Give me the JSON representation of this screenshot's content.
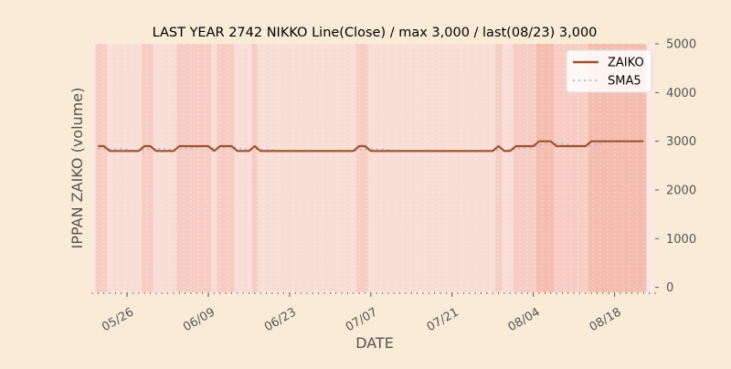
{
  "chart_data": {
    "type": "line",
    "title": "LAST YEAR 2742 NIKKO Line(Close) / max 3,000 / last(08/23) 3,000",
    "xlabel": "DATE",
    "ylabel": "IPPAN ZAIKO (volume)",
    "y_axis_side": "right",
    "ylim": [
      -100,
      5000
    ],
    "yticks": [
      "0",
      "1000",
      "2000",
      "3000",
      "4000",
      "5000"
    ],
    "xlim": [
      "2023-05-20",
      "2023-08-25"
    ],
    "xticks": [
      {
        "date": "2023-05-26",
        "label": "05/26"
      },
      {
        "date": "2023-06-09",
        "label": "06/09"
      },
      {
        "date": "2023-06-23",
        "label": "06/23"
      },
      {
        "date": "2023-07-07",
        "label": "07/07"
      },
      {
        "date": "2023-07-21",
        "label": "07/21"
      },
      {
        "date": "2023-08-04",
        "label": "08/04"
      },
      {
        "date": "2023-08-18",
        "label": "08/18"
      }
    ],
    "legend_position": "top-right",
    "grid": true,
    "series": [
      {
        "name": "ZAIKO",
        "color": "#a0522d",
        "style": "solid",
        "points": [
          [
            "2023-05-21",
            2900
          ],
          [
            "2023-05-22",
            2900
          ],
          [
            "2023-05-23",
            2800
          ],
          [
            "2023-05-24",
            2800
          ],
          [
            "2023-05-25",
            2800
          ],
          [
            "2023-05-26",
            2800
          ],
          [
            "2023-05-27",
            2800
          ],
          [
            "2023-05-28",
            2800
          ],
          [
            "2023-05-29",
            2900
          ],
          [
            "2023-05-30",
            2900
          ],
          [
            "2023-05-31",
            2800
          ],
          [
            "2023-06-01",
            2800
          ],
          [
            "2023-06-02",
            2800
          ],
          [
            "2023-06-03",
            2800
          ],
          [
            "2023-06-04",
            2900
          ],
          [
            "2023-06-05",
            2900
          ],
          [
            "2023-06-06",
            2900
          ],
          [
            "2023-06-07",
            2900
          ],
          [
            "2023-06-08",
            2900
          ],
          [
            "2023-06-09",
            2900
          ],
          [
            "2023-06-10",
            2800
          ],
          [
            "2023-06-11",
            2900
          ],
          [
            "2023-06-12",
            2900
          ],
          [
            "2023-06-13",
            2900
          ],
          [
            "2023-06-14",
            2800
          ],
          [
            "2023-06-15",
            2800
          ],
          [
            "2023-06-16",
            2800
          ],
          [
            "2023-06-17",
            2900
          ],
          [
            "2023-06-18",
            2800
          ],
          [
            "2023-06-19",
            2800
          ],
          [
            "2023-06-20",
            2800
          ],
          [
            "2023-06-21",
            2800
          ],
          [
            "2023-06-22",
            2800
          ],
          [
            "2023-06-23",
            2800
          ],
          [
            "2023-06-24",
            2800
          ],
          [
            "2023-06-25",
            2800
          ],
          [
            "2023-06-26",
            2800
          ],
          [
            "2023-06-27",
            2800
          ],
          [
            "2023-06-28",
            2800
          ],
          [
            "2023-06-29",
            2800
          ],
          [
            "2023-06-30",
            2800
          ],
          [
            "2023-07-01",
            2800
          ],
          [
            "2023-07-02",
            2800
          ],
          [
            "2023-07-03",
            2800
          ],
          [
            "2023-07-04",
            2800
          ],
          [
            "2023-07-05",
            2900
          ],
          [
            "2023-07-06",
            2900
          ],
          [
            "2023-07-07",
            2800
          ],
          [
            "2023-07-08",
            2800
          ],
          [
            "2023-07-09",
            2800
          ],
          [
            "2023-07-10",
            2800
          ],
          [
            "2023-07-11",
            2800
          ],
          [
            "2023-07-12",
            2800
          ],
          [
            "2023-07-13",
            2800
          ],
          [
            "2023-07-14",
            2800
          ],
          [
            "2023-07-15",
            2800
          ],
          [
            "2023-07-16",
            2800
          ],
          [
            "2023-07-17",
            2800
          ],
          [
            "2023-07-18",
            2800
          ],
          [
            "2023-07-19",
            2800
          ],
          [
            "2023-07-20",
            2800
          ],
          [
            "2023-07-21",
            2800
          ],
          [
            "2023-07-22",
            2800
          ],
          [
            "2023-07-23",
            2800
          ],
          [
            "2023-07-24",
            2800
          ],
          [
            "2023-07-25",
            2800
          ],
          [
            "2023-07-26",
            2800
          ],
          [
            "2023-07-27",
            2800
          ],
          [
            "2023-07-28",
            2800
          ],
          [
            "2023-07-29",
            2900
          ],
          [
            "2023-07-30",
            2800
          ],
          [
            "2023-07-31",
            2800
          ],
          [
            "2023-08-01",
            2900
          ],
          [
            "2023-08-02",
            2900
          ],
          [
            "2023-08-03",
            2900
          ],
          [
            "2023-08-04",
            2900
          ],
          [
            "2023-08-05",
            3000
          ],
          [
            "2023-08-06",
            3000
          ],
          [
            "2023-08-07",
            3000
          ],
          [
            "2023-08-08",
            2900
          ],
          [
            "2023-08-09",
            2900
          ],
          [
            "2023-08-10",
            2900
          ],
          [
            "2023-08-11",
            2900
          ],
          [
            "2023-08-12",
            2900
          ],
          [
            "2023-08-13",
            2900
          ],
          [
            "2023-08-14",
            3000
          ],
          [
            "2023-08-15",
            3000
          ],
          [
            "2023-08-16",
            3000
          ],
          [
            "2023-08-17",
            3000
          ],
          [
            "2023-08-18",
            3000
          ],
          [
            "2023-08-19",
            3000
          ],
          [
            "2023-08-20",
            3000
          ],
          [
            "2023-08-21",
            3000
          ],
          [
            "2023-08-22",
            3000
          ],
          [
            "2023-08-23",
            3000
          ]
        ]
      },
      {
        "name": "SMA5",
        "color": "#a8bfd6",
        "style": "dotted",
        "points": [
          [
            "2023-05-21",
            2850
          ],
          [
            "2023-05-22",
            2850
          ],
          [
            "2023-05-23",
            2840
          ],
          [
            "2023-05-24",
            2840
          ],
          [
            "2023-05-25",
            2850
          ],
          [
            "2023-05-26",
            2830
          ],
          [
            "2023-05-27",
            2810
          ],
          [
            "2023-05-28",
            2800
          ],
          [
            "2023-05-29",
            2820
          ],
          [
            "2023-05-30",
            2840
          ],
          [
            "2023-05-31",
            2850
          ],
          [
            "2023-06-01",
            2840
          ],
          [
            "2023-06-02",
            2840
          ],
          [
            "2023-06-03",
            2820
          ],
          [
            "2023-06-04",
            2820
          ],
          [
            "2023-06-05",
            2850
          ],
          [
            "2023-06-06",
            2860
          ],
          [
            "2023-06-07",
            2880
          ],
          [
            "2023-06-08",
            2900
          ],
          [
            "2023-06-09",
            2880
          ],
          [
            "2023-06-10",
            2860
          ],
          [
            "2023-06-11",
            2880
          ],
          [
            "2023-06-12",
            2880
          ],
          [
            "2023-06-13",
            2880
          ],
          [
            "2023-06-14",
            2860
          ],
          [
            "2023-06-15",
            2840
          ],
          [
            "2023-06-16",
            2840
          ],
          [
            "2023-06-17",
            2840
          ],
          [
            "2023-06-18",
            2830
          ],
          [
            "2023-06-19",
            2820
          ],
          [
            "2023-06-20",
            2820
          ],
          [
            "2023-06-21",
            2800
          ],
          [
            "2023-06-22",
            2800
          ],
          [
            "2023-06-23",
            2800
          ],
          [
            "2023-06-24",
            2800
          ],
          [
            "2023-06-25",
            2800
          ],
          [
            "2023-06-26",
            2800
          ],
          [
            "2023-06-27",
            2800
          ],
          [
            "2023-06-28",
            2800
          ],
          [
            "2023-06-29",
            2800
          ],
          [
            "2023-06-30",
            2800
          ],
          [
            "2023-07-01",
            2800
          ],
          [
            "2023-07-02",
            2800
          ],
          [
            "2023-07-03",
            2800
          ],
          [
            "2023-07-04",
            2800
          ],
          [
            "2023-07-05",
            2820
          ],
          [
            "2023-07-06",
            2840
          ],
          [
            "2023-07-07",
            2840
          ],
          [
            "2023-07-08",
            2840
          ],
          [
            "2023-07-09",
            2840
          ],
          [
            "2023-07-10",
            2820
          ],
          [
            "2023-07-11",
            2800
          ],
          [
            "2023-07-12",
            2800
          ],
          [
            "2023-07-13",
            2800
          ],
          [
            "2023-07-14",
            2800
          ],
          [
            "2023-07-15",
            2800
          ],
          [
            "2023-07-16",
            2800
          ],
          [
            "2023-07-17",
            2800
          ],
          [
            "2023-07-18",
            2800
          ],
          [
            "2023-07-19",
            2800
          ],
          [
            "2023-07-20",
            2800
          ],
          [
            "2023-07-21",
            2800
          ],
          [
            "2023-07-22",
            2800
          ],
          [
            "2023-07-23",
            2800
          ],
          [
            "2023-07-24",
            2800
          ],
          [
            "2023-07-25",
            2800
          ],
          [
            "2023-07-26",
            2800
          ],
          [
            "2023-07-27",
            2800
          ],
          [
            "2023-07-28",
            2800
          ],
          [
            "2023-07-29",
            2820
          ],
          [
            "2023-07-30",
            2820
          ],
          [
            "2023-07-31",
            2820
          ],
          [
            "2023-08-01",
            2840
          ],
          [
            "2023-08-02",
            2860
          ],
          [
            "2023-08-03",
            2860
          ],
          [
            "2023-08-04",
            2880
          ],
          [
            "2023-08-05",
            2920
          ],
          [
            "2023-08-06",
            2940
          ],
          [
            "2023-08-07",
            2960
          ],
          [
            "2023-08-08",
            2960
          ],
          [
            "2023-08-09",
            2960
          ],
          [
            "2023-08-10",
            2940
          ],
          [
            "2023-08-11",
            2920
          ],
          [
            "2023-08-12",
            2900
          ],
          [
            "2023-08-13",
            2900
          ],
          [
            "2023-08-14",
            2920
          ],
          [
            "2023-08-15",
            2940
          ],
          [
            "2023-08-16",
            2960
          ],
          [
            "2023-08-17",
            2980
          ],
          [
            "2023-08-18",
            3000
          ],
          [
            "2023-08-19",
            3000
          ],
          [
            "2023-08-20",
            3000
          ],
          [
            "2023-08-21",
            3000
          ],
          [
            "2023-08-22",
            3000
          ],
          [
            "2023-08-23",
            3000
          ]
        ]
      }
    ]
  },
  "colors": {
    "page_background": "#faebd7",
    "plot_background": "#fbe8e2",
    "highlight_band": "#f2a99b",
    "grid": "#ffffff",
    "text": "#555555",
    "title": "#000000"
  }
}
